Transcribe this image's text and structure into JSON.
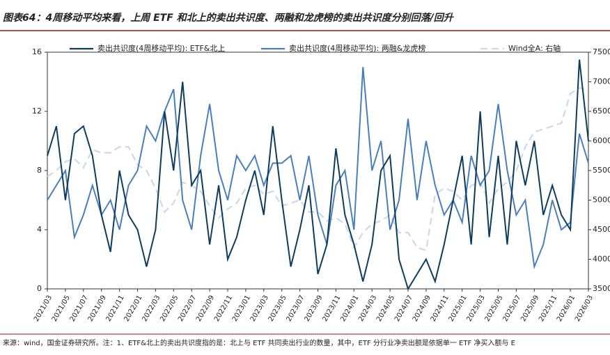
{
  "chart_data": {
    "type": "line",
    "title": "图表64：4周移动平均来看，上周 ETF 和北上的卖出共识度、两融和龙虎榜的卖出共识度分别回落/回升",
    "source": "来源：wind，国金证券研究所。注：1、ETF&北上的卖出共识度指的是：北上与 ETF 共同卖出行业的数量，其中，ETF 分行业净卖出额是依据单一 ETF 净买入额与 E",
    "categories": [
      "2021/03",
      null,
      "2021/05",
      null,
      "2021/07",
      null,
      "2021/09",
      null,
      "2021/11",
      null,
      "2022/01",
      null,
      "2022/03",
      null,
      "2022/05",
      null,
      "2022/07",
      null,
      "2022/09",
      null,
      "2022/11",
      null,
      "2023/01",
      null,
      "2023/03",
      null,
      "2023/05",
      null,
      "2023/07",
      null,
      "2023/09",
      null,
      "2023/11",
      null,
      "2024/01",
      null,
      "2024/03",
      null,
      "2024/05",
      null,
      "2024/07",
      null,
      "2024/09",
      null,
      "2024/11",
      null,
      "2025/01",
      null,
      "2025/03",
      null,
      "2025/05",
      null,
      "2025/07",
      null,
      "2025/09",
      null,
      "2025/11",
      null,
      "2026/01",
      null,
      "2026/03"
    ],
    "series": [
      {
        "name": "卖出共识度(4周移动平均): ETF&北上",
        "color": "#0d3b5e",
        "values": [
          9,
          11,
          6,
          10.5,
          11,
          9,
          5,
          2.5,
          8,
          5,
          4,
          1.5,
          4,
          12,
          8,
          14,
          7,
          8,
          3,
          7,
          2,
          3.5,
          6,
          8,
          5,
          11,
          6,
          1.5,
          4,
          7,
          1,
          3,
          9.5,
          5,
          3,
          0.5,
          3,
          8,
          9,
          2,
          0,
          1,
          2,
          0.5,
          3,
          6,
          9,
          3,
          12,
          3.5,
          9,
          3,
          10,
          7,
          10,
          5,
          7,
          5,
          4,
          15.5,
          10
        ]
      },
      {
        "name": "卖出共识度(4周移动平均): 两融&龙虎榜",
        "color": "#4a7ebb",
        "values": [
          6,
          7,
          8,
          3.5,
          5,
          7,
          5,
          6,
          4,
          7,
          8,
          11,
          10,
          12,
          13.5,
          6,
          4,
          9,
          12.5,
          8,
          6,
          9,
          8,
          9,
          7,
          8.5,
          8.5,
          9,
          6,
          9,
          5,
          3,
          7,
          8,
          4,
          15,
          8,
          10,
          4,
          6,
          11.5,
          6,
          10,
          7,
          5,
          6,
          4.5,
          9,
          7,
          8,
          12.5,
          8,
          5,
          6,
          1.5,
          3,
          6,
          4,
          4.5,
          10.5,
          8.5
        ]
      },
      {
        "name": "Wind全A: 右轴",
        "color": "#c8dbe9",
        "dashed": true,
        "axis": "y2",
        "values": [
          5400,
          5500,
          5650,
          5700,
          5550,
          5850,
          5800,
          5800,
          5900,
          5900,
          5600,
          5500,
          5200,
          4800,
          4950,
          5300,
          5250,
          5150,
          4900,
          4700,
          4850,
          4950,
          5200,
          5250,
          5100,
          5150,
          4900,
          4950,
          5000,
          4800,
          4800,
          4650,
          4700,
          4600,
          4200,
          4450,
          4600,
          4650,
          4750,
          4450,
          4450,
          4200,
          4150,
          5100,
          5200,
          5150,
          5000,
          5250,
          5300,
          4950,
          5200,
          5300,
          5500,
          5900,
          6150,
          6200,
          6250,
          6300,
          6800,
          6900,
          6850
        ]
      }
    ],
    "ylim": [
      0,
      16
    ],
    "yticks": [
      0,
      4,
      8,
      12,
      16
    ],
    "y2lim": [
      3500,
      7500
    ],
    "y2ticks": [
      3500,
      4000,
      4500,
      5000,
      5500,
      6000,
      6500,
      7000,
      7500
    ]
  }
}
